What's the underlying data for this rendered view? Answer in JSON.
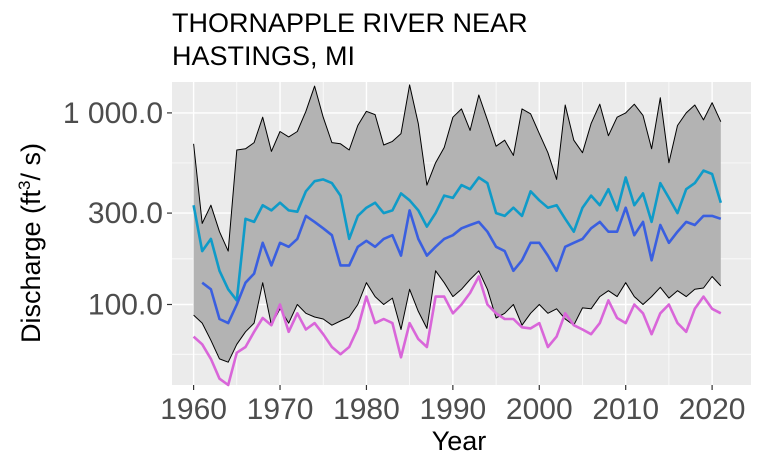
{
  "chart_data": {
    "type": "line",
    "title_lines": [
      "THORNAPPLE RIVER NEAR",
      "HASTINGS, MI"
    ],
    "xlabel": "Year",
    "ylabel": {
      "text": "Discharge (ft",
      "superscript": "3",
      "suffix": "/ s)"
    },
    "y_scale": "log10",
    "ylim": [
      38,
      1450
    ],
    "xlim": [
      1957.5,
      2024.5
    ],
    "y_ticks": [
      100,
      300,
      1000
    ],
    "y_tick_labels": [
      "100.0",
      "300.0",
      "1 000.0"
    ],
    "x_ticks": [
      1960,
      1970,
      1980,
      1990,
      2000,
      2010,
      2020
    ],
    "x_tick_labels": [
      "1960",
      "1970",
      "1980",
      "1990",
      "2000",
      "2010",
      "2020"
    ],
    "grid": true,
    "colors": {
      "panel": "#ebebeb",
      "grid": "#ffffff",
      "ribbon_fill": "#b3b3b3",
      "ribbon_line": "#000000",
      "upper": "#0f9bc8",
      "middle": "#3a5fe0",
      "lower": "#d966d9"
    },
    "x": [
      1960,
      1961,
      1962,
      1963,
      1964,
      1965,
      1966,
      1967,
      1968,
      1969,
      1970,
      1971,
      1972,
      1973,
      1974,
      1975,
      1976,
      1977,
      1978,
      1979,
      1980,
      1981,
      1982,
      1983,
      1984,
      1985,
      1986,
      1987,
      1988,
      1989,
      1990,
      1991,
      1992,
      1993,
      1994,
      1995,
      1996,
      1997,
      1998,
      1999,
      2000,
      2001,
      2002,
      2003,
      2004,
      2005,
      2006,
      2007,
      2008,
      2009,
      2010,
      2011,
      2012,
      2013,
      2014,
      2015,
      2016,
      2017,
      2018,
      2019,
      2020,
      2021
    ],
    "ribbon_upper": [
      690,
      265,
      330,
      240,
      190,
      640,
      650,
      700,
      950,
      630,
      800,
      750,
      800,
      1020,
      1380,
      950,
      700,
      690,
      640,
      860,
      1020,
      980,
      680,
      710,
      780,
      1400,
      880,
      420,
      550,
      660,
      950,
      1050,
      810,
      1240,
      920,
      670,
      720,
      600,
      1050,
      990,
      780,
      620,
      450,
      1100,
      720,
      620,
      880,
      1110,
      760,
      950,
      1000,
      1110,
      970,
      650,
      1200,
      550,
      860,
      1000,
      1100,
      920,
      1130,
      900,
      690
    ],
    "ribbon_lower": [
      88,
      80,
      65,
      52,
      50,
      62,
      72,
      80,
      130,
      78,
      95,
      80,
      100,
      90,
      86,
      84,
      78,
      82,
      86,
      100,
      130,
      110,
      100,
      108,
      74,
      120,
      92,
      75,
      150,
      130,
      110,
      120,
      135,
      150,
      120,
      85,
      90,
      100,
      78,
      90,
      100,
      90,
      95,
      84,
      78,
      96,
      95,
      110,
      118,
      110,
      130,
      110,
      100,
      110,
      123,
      108,
      118,
      110,
      120,
      122,
      140,
      125
    ]
  },
  "series": [
    {
      "key": "upper",
      "values": [
        330,
        190,
        220,
        150,
        120,
        105,
        280,
        270,
        330,
        310,
        340,
        310,
        305,
        390,
        440,
        450,
        430,
        370,
        220,
        290,
        320,
        340,
        300,
        310,
        380,
        350,
        310,
        255,
        300,
        370,
        360,
        420,
        400,
        460,
        430,
        300,
        290,
        320,
        290,
        390,
        350,
        320,
        330,
        280,
        240,
        320,
        370,
        330,
        400,
        310,
        460,
        330,
        380,
        270,
        430,
        360,
        300,
        400,
        430,
        500,
        480,
        340
      ]
    },
    {
      "key": "middle",
      "values": [
        null,
        130,
        120,
        84,
        80,
        100,
        130,
        145,
        210,
        160,
        210,
        200,
        220,
        290,
        270,
        250,
        230,
        160,
        160,
        200,
        215,
        200,
        220,
        230,
        180,
        310,
        220,
        180,
        200,
        220,
        230,
        250,
        260,
        270,
        240,
        200,
        190,
        150,
        170,
        210,
        210,
        180,
        150,
        200,
        210,
        220,
        250,
        270,
        240,
        240,
        320,
        230,
        270,
        170,
        260,
        210,
        240,
        270,
        260,
        290,
        290,
        280
      ]
    },
    {
      "key": "lower",
      "values": [
        68,
        62,
        52,
        41,
        38,
        56,
        60,
        72,
        85,
        78,
        100,
        72,
        90,
        74,
        80,
        70,
        60,
        55,
        60,
        75,
        110,
        80,
        84,
        80,
        53,
        80,
        66,
        60,
        110,
        110,
        90,
        100,
        115,
        140,
        100,
        90,
        84,
        84,
        76,
        75,
        80,
        60,
        68,
        90,
        78,
        74,
        70,
        80,
        105,
        85,
        80,
        100,
        90,
        70,
        90,
        100,
        80,
        72,
        95,
        110,
        95,
        90
      ]
    }
  ]
}
